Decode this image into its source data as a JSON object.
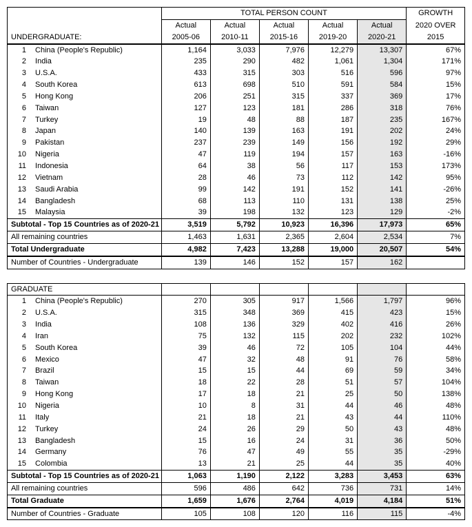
{
  "header": {
    "group1": "TOTAL PERSON COUNT",
    "group2_line1": "GROWTH",
    "group2_line2": "2020 OVER",
    "group2_line3": "2015",
    "col_prefix": "Actual",
    "years": [
      "2005-06",
      "2010-11",
      "2015-16",
      "2019-20",
      "2020-21"
    ]
  },
  "sections": [
    {
      "title": "UNDERGRADUATE:",
      "rows": [
        {
          "rank": "1",
          "country": "China (People's Republic)",
          "y": [
            "1,164",
            "3,033",
            "7,976",
            "12,279",
            "13,307"
          ],
          "g": "67%"
        },
        {
          "rank": "2",
          "country": "India",
          "y": [
            "235",
            "290",
            "482",
            "1,061",
            "1,304"
          ],
          "g": "171%"
        },
        {
          "rank": "3",
          "country": "U.S.A.",
          "y": [
            "433",
            "315",
            "303",
            "516",
            "596"
          ],
          "g": "97%"
        },
        {
          "rank": "4",
          "country": "South Korea",
          "y": [
            "613",
            "698",
            "510",
            "591",
            "584"
          ],
          "g": "15%"
        },
        {
          "rank": "5",
          "country": "Hong Kong",
          "y": [
            "206",
            "251",
            "315",
            "337",
            "369"
          ],
          "g": "17%"
        },
        {
          "rank": "6",
          "country": "Taiwan",
          "y": [
            "127",
            "123",
            "181",
            "286",
            "318"
          ],
          "g": "76%"
        },
        {
          "rank": "7",
          "country": "Turkey",
          "y": [
            "19",
            "48",
            "88",
            "187",
            "235"
          ],
          "g": "167%"
        },
        {
          "rank": "8",
          "country": "Japan",
          "y": [
            "140",
            "139",
            "163",
            "191",
            "202"
          ],
          "g": "24%"
        },
        {
          "rank": "9",
          "country": "Pakistan",
          "y": [
            "237",
            "239",
            "149",
            "156",
            "192"
          ],
          "g": "29%"
        },
        {
          "rank": "10",
          "country": "Nigeria",
          "y": [
            "47",
            "119",
            "194",
            "157",
            "163"
          ],
          "g": "-16%"
        },
        {
          "rank": "11",
          "country": "Indonesia",
          "y": [
            "64",
            "38",
            "56",
            "117",
            "153"
          ],
          "g": "173%"
        },
        {
          "rank": "12",
          "country": "Vietnam",
          "y": [
            "28",
            "46",
            "73",
            "112",
            "142"
          ],
          "g": "95%"
        },
        {
          "rank": "13",
          "country": "Saudi Arabia",
          "y": [
            "99",
            "142",
            "191",
            "152",
            "141"
          ],
          "g": "-26%"
        },
        {
          "rank": "14",
          "country": "Bangladesh",
          "y": [
            "68",
            "113",
            "110",
            "131",
            "138"
          ],
          "g": "25%"
        },
        {
          "rank": "15",
          "country": "Malaysia",
          "y": [
            "39",
            "198",
            "132",
            "123",
            "129"
          ],
          "g": "-2%"
        }
      ],
      "subtotal": {
        "label": "Subtotal - Top 15 Countries as of 2020-21",
        "y": [
          "3,519",
          "5,792",
          "10,923",
          "16,396",
          "17,973"
        ],
        "g": "65%"
      },
      "remaining": {
        "label": "All remaining countries",
        "y": [
          "1,463",
          "1,631",
          "2,365",
          "2,604",
          "2,534"
        ],
        "g": "7%"
      },
      "total": {
        "label": "Total Undergraduate",
        "y": [
          "4,982",
          "7,423",
          "13,288",
          "19,000",
          "20,507"
        ],
        "g": "54%"
      },
      "count": {
        "label": "Number of Countries - Undergraduate",
        "y": [
          "139",
          "146",
          "152",
          "157",
          "162"
        ],
        "g": ""
      }
    },
    {
      "title": "GRADUATE",
      "rows": [
        {
          "rank": "1",
          "country": "China (People's Republic)",
          "y": [
            "270",
            "305",
            "917",
            "1,566",
            "1,797"
          ],
          "g": "96%"
        },
        {
          "rank": "2",
          "country": "U.S.A.",
          "y": [
            "315",
            "348",
            "369",
            "415",
            "423"
          ],
          "g": "15%"
        },
        {
          "rank": "3",
          "country": "India",
          "y": [
            "108",
            "136",
            "329",
            "402",
            "416"
          ],
          "g": "26%"
        },
        {
          "rank": "4",
          "country": "Iran",
          "y": [
            "75",
            "132",
            "115",
            "202",
            "232"
          ],
          "g": "102%"
        },
        {
          "rank": "5",
          "country": "South Korea",
          "y": [
            "39",
            "46",
            "72",
            "105",
            "104"
          ],
          "g": "44%"
        },
        {
          "rank": "6",
          "country": "Mexico",
          "y": [
            "47",
            "32",
            "48",
            "91",
            "76"
          ],
          "g": "58%"
        },
        {
          "rank": "7",
          "country": "Brazil",
          "y": [
            "15",
            "15",
            "44",
            "69",
            "59"
          ],
          "g": "34%"
        },
        {
          "rank": "8",
          "country": "Taiwan",
          "y": [
            "18",
            "22",
            "28",
            "51",
            "57"
          ],
          "g": "104%"
        },
        {
          "rank": "9",
          "country": "Hong Kong",
          "y": [
            "17",
            "18",
            "21",
            "25",
            "50"
          ],
          "g": "138%"
        },
        {
          "rank": "10",
          "country": "Nigeria",
          "y": [
            "10",
            "8",
            "31",
            "44",
            "46"
          ],
          "g": "48%"
        },
        {
          "rank": "11",
          "country": "Italy",
          "y": [
            "21",
            "18",
            "21",
            "43",
            "44"
          ],
          "g": "110%"
        },
        {
          "rank": "12",
          "country": "Turkey",
          "y": [
            "24",
            "26",
            "29",
            "50",
            "43"
          ],
          "g": "48%"
        },
        {
          "rank": "13",
          "country": "Bangladesh",
          "y": [
            "15",
            "16",
            "24",
            "31",
            "36"
          ],
          "g": "50%"
        },
        {
          "rank": "14",
          "country": "Germany",
          "y": [
            "76",
            "47",
            "49",
            "55",
            "35"
          ],
          "g": "-29%"
        },
        {
          "rank": "15",
          "country": "Colombia",
          "y": [
            "13",
            "21",
            "25",
            "44",
            "35"
          ],
          "g": "40%"
        }
      ],
      "subtotal": {
        "label": "Subtotal - Top 15 Countries as of 2020-21",
        "y": [
          "1,063",
          "1,190",
          "2,122",
          "3,283",
          "3,453"
        ],
        "g": "63%"
      },
      "remaining": {
        "label": "All remaining countries",
        "y": [
          "596",
          "486",
          "642",
          "736",
          "731"
        ],
        "g": "14%"
      },
      "total": {
        "label": "Total Graduate",
        "y": [
          "1,659",
          "1,676",
          "2,764",
          "4,019",
          "4,184"
        ],
        "g": "51%"
      },
      "count": {
        "label": "Number of Countries - Graduate",
        "y": [
          "105",
          "108",
          "120",
          "116",
          "115"
        ],
        "g": "-4%"
      }
    }
  ]
}
